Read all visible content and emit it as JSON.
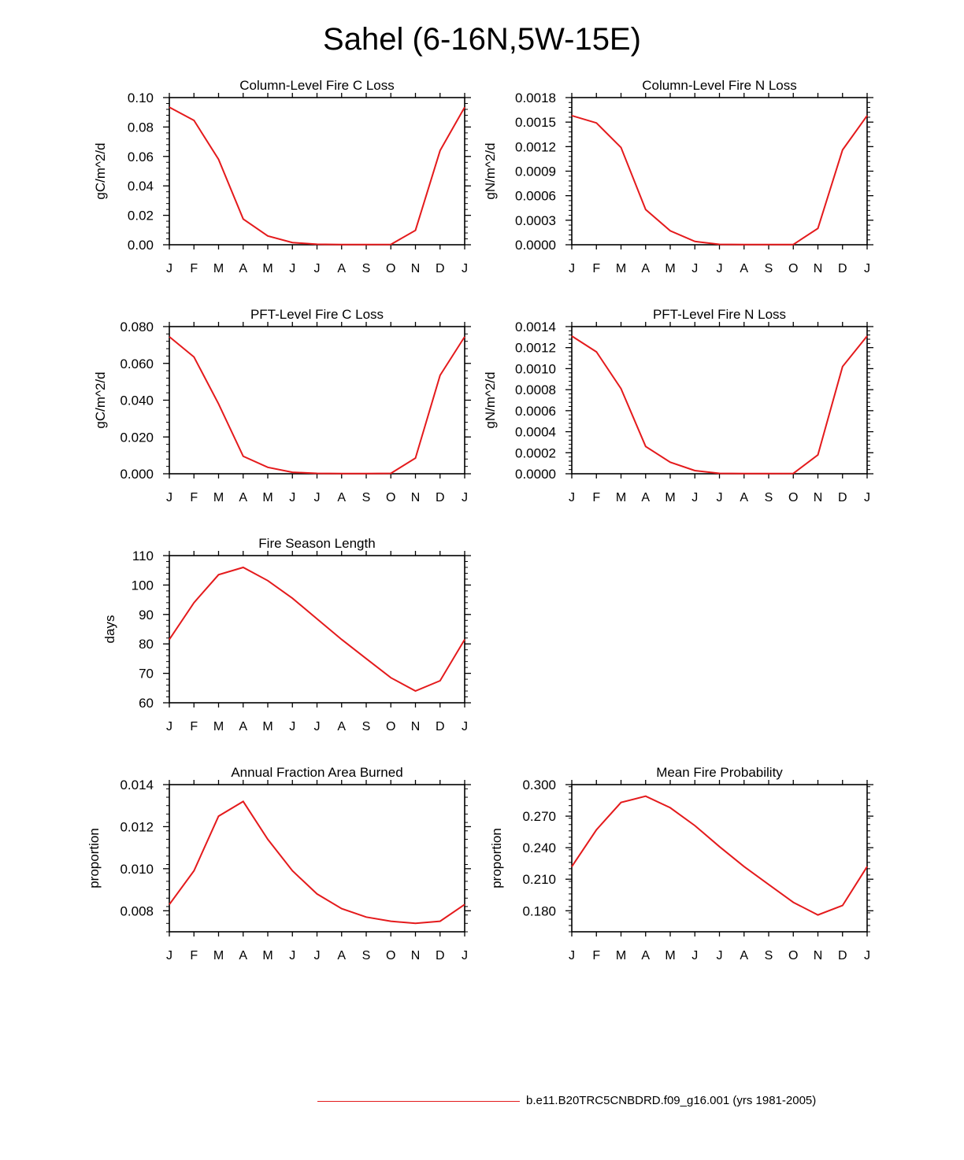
{
  "title": "Sahel (6-16N,5W-15E)",
  "line_color": "#e41a1c",
  "legend": {
    "label": "b.e11.B20TRC5CNBDRD.f09_g16.001 (yrs 1981-2005)"
  },
  "chart_data": [
    {
      "type": "line",
      "title": "Column-Level Fire C Loss",
      "ylabel": "gC/m^2/d",
      "xlabel": "",
      "categories": [
        "J",
        "F",
        "M",
        "A",
        "M",
        "J",
        "J",
        "A",
        "S",
        "O",
        "N",
        "D",
        "J"
      ],
      "yticks": [
        "0.00",
        "0.02",
        "0.04",
        "0.06",
        "0.08",
        "0.10"
      ],
      "ylim": [
        0,
        0.1
      ],
      "values": [
        0.0935,
        0.0845,
        0.058,
        0.0175,
        0.006,
        0.0015,
        0.0003,
        0.0001,
        0.0001,
        0.0002,
        0.0098,
        0.064,
        0.0935
      ]
    },
    {
      "type": "line",
      "title": "Column-Level Fire N Loss",
      "ylabel": "gN/m^2/d",
      "xlabel": "",
      "categories": [
        "J",
        "F",
        "M",
        "A",
        "M",
        "J",
        "J",
        "A",
        "S",
        "O",
        "N",
        "D",
        "J"
      ],
      "yticks": [
        "0.0000",
        "0.0003",
        "0.0006",
        "0.0009",
        "0.0012",
        "0.0015",
        "0.0018"
      ],
      "ylim": [
        0,
        0.0018
      ],
      "values": [
        0.00158,
        0.00149,
        0.00119,
        0.00043,
        0.00017,
        4e-05,
        5e-06,
        2e-06,
        2e-06,
        3e-06,
        0.0002,
        0.00116,
        0.00158
      ]
    },
    {
      "type": "line",
      "title": "PFT-Level Fire C Loss",
      "ylabel": "gC/m^2/d",
      "xlabel": "",
      "categories": [
        "J",
        "F",
        "M",
        "A",
        "M",
        "J",
        "J",
        "A",
        "S",
        "O",
        "N",
        "D",
        "J"
      ],
      "yticks": [
        "0.000",
        "0.020",
        "0.040",
        "0.060",
        "0.080"
      ],
      "ylim": [
        0,
        0.08
      ],
      "values": [
        0.0745,
        0.0635,
        0.038,
        0.0095,
        0.0035,
        0.0008,
        0.0002,
        0.0001,
        0.0001,
        0.0002,
        0.0085,
        0.0535,
        0.0745
      ]
    },
    {
      "type": "line",
      "title": "PFT-Level Fire N Loss",
      "ylabel": "gN/m^2/d",
      "xlabel": "",
      "categories": [
        "J",
        "F",
        "M",
        "A",
        "M",
        "J",
        "J",
        "A",
        "S",
        "O",
        "N",
        "D",
        "J"
      ],
      "yticks": [
        "0.0000",
        "0.0002",
        "0.0004",
        "0.0006",
        "0.0008",
        "0.0010",
        "0.0012",
        "0.0014"
      ],
      "ylim": [
        0,
        0.0014
      ],
      "values": [
        0.00131,
        0.00116,
        0.00081,
        0.00026,
        0.00011,
        3e-05,
        4e-06,
        2e-06,
        2e-06,
        3e-06,
        0.00018,
        0.00102,
        0.00131
      ]
    },
    {
      "type": "line",
      "title": "Fire Season Length",
      "ylabel": "days",
      "xlabel": "",
      "categories": [
        "J",
        "F",
        "M",
        "A",
        "M",
        "J",
        "J",
        "A",
        "S",
        "O",
        "N",
        "D",
        "J"
      ],
      "yticks": [
        "60",
        "70",
        "80",
        "90",
        "100",
        "110"
      ],
      "ylim": [
        60,
        110
      ],
      "values": [
        81.5,
        94,
        103.5,
        106,
        101.5,
        95.5,
        88.5,
        81.5,
        75,
        68.5,
        64,
        67.5,
        81.5
      ]
    },
    {
      "type": "line",
      "title": "Annual Fraction Area Burned",
      "ylabel": "proportion",
      "xlabel": "",
      "categories": [
        "J",
        "F",
        "M",
        "A",
        "M",
        "J",
        "J",
        "A",
        "S",
        "O",
        "N",
        "D",
        "J"
      ],
      "yticks": [
        "0.008",
        "0.010",
        "0.012",
        "0.014"
      ],
      "ylim": [
        0.007,
        0.014
      ],
      "values": [
        0.0083,
        0.0099,
        0.0125,
        0.0132,
        0.0114,
        0.0099,
        0.0088,
        0.0081,
        0.0077,
        0.0075,
        0.0074,
        0.0075,
        0.0083
      ]
    },
    {
      "type": "line",
      "title": "Mean Fire Probability",
      "ylabel": "proportion",
      "xlabel": "",
      "categories": [
        "J",
        "F",
        "M",
        "A",
        "M",
        "J",
        "J",
        "A",
        "S",
        "O",
        "N",
        "D",
        "J"
      ],
      "yticks": [
        "0.180",
        "0.210",
        "0.240",
        "0.270",
        "0.300"
      ],
      "ylim": [
        0.16,
        0.3
      ],
      "values": [
        0.222,
        0.257,
        0.283,
        0.289,
        0.278,
        0.261,
        0.241,
        0.222,
        0.205,
        0.188,
        0.176,
        0.185,
        0.222
      ]
    }
  ]
}
